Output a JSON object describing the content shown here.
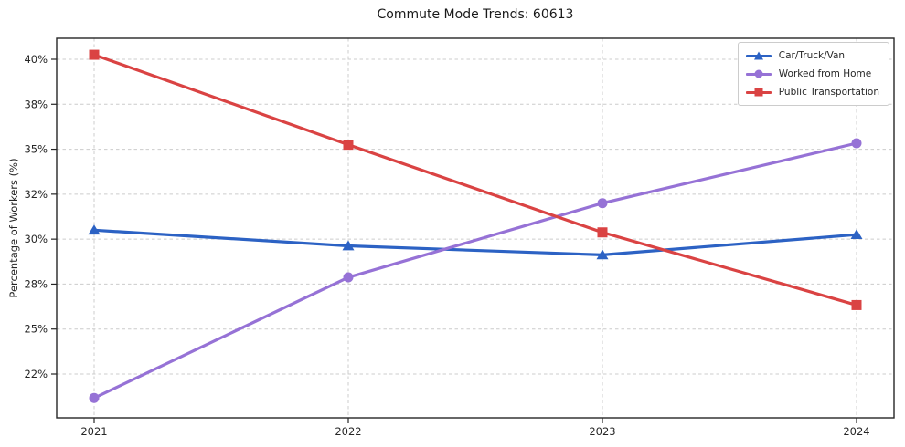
{
  "chart_data": {
    "type": "line",
    "title": "Commute Mode Trends: 60613",
    "xlabel": "",
    "ylabel": "Percentage of Workers (%)",
    "categories": [
      "2021",
      "2022",
      "2023",
      "2024"
    ],
    "yticks": [
      22,
      25,
      28,
      30,
      32,
      35,
      38,
      40
    ],
    "ytick_labels": [
      "22%",
      "25%",
      "28%",
      "30%",
      "32%",
      "35%",
      "38%",
      "40%"
    ],
    "ylim_approx": [
      20,
      41
    ],
    "grid": true,
    "legend_position": "upper-right",
    "series": [
      {
        "name": "Car/Truck/Van",
        "marker": "triangle",
        "color": "#2c62c4",
        "values": [
          30.4,
          29.7,
          29.3,
          30.2
        ]
      },
      {
        "name": "Worked from Home",
        "marker": "circle",
        "color": "#9672d6",
        "values": [
          20.4,
          28.3,
          31.6,
          35.4
        ]
      },
      {
        "name": "Public Transportation",
        "marker": "square",
        "color": "#da4343",
        "values": [
          40.2,
          35.3,
          30.3,
          26.6
        ]
      }
    ],
    "colors": {
      "grid": "#cccccc",
      "spine": "#262626",
      "tick_text": "#262626",
      "title_text": "#1a1a1a"
    }
  }
}
